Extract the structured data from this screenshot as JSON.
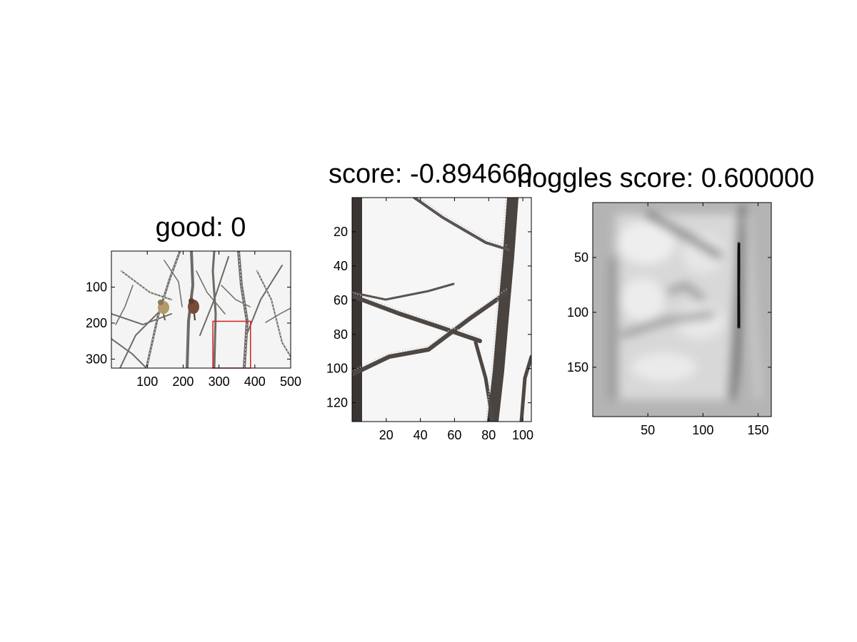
{
  "chart_data": [
    {
      "type": "image",
      "title": "good: 0",
      "xlim": [
        0,
        500
      ],
      "ylim": [
        0,
        325
      ],
      "xticks": [
        100,
        200,
        300,
        400,
        500
      ],
      "yticks": [
        100,
        200,
        300
      ],
      "box": {
        "x1": 283,
        "y1": 195,
        "x2": 388,
        "y2": 325,
        "color": "#d42020"
      },
      "content": "snowy tree branches with two birds"
    },
    {
      "type": "image",
      "title": "score: -0.894660",
      "xlim": [
        0,
        105
      ],
      "ylim": [
        0,
        131
      ],
      "xticks": [
        20,
        40,
        60,
        80,
        100
      ],
      "yticks": [
        20,
        40,
        60,
        80,
        100,
        120
      ],
      "content": "cropped frosted branches"
    },
    {
      "type": "heatmap",
      "title": "hoggles score: 0.600000",
      "xlim": [
        0,
        162
      ],
      "ylim": [
        0,
        195
      ],
      "xticks": [
        50,
        100,
        150
      ],
      "yticks": [
        50,
        100,
        150
      ],
      "colormap": "gray",
      "content": "blurred grayscale reconstruction"
    }
  ]
}
